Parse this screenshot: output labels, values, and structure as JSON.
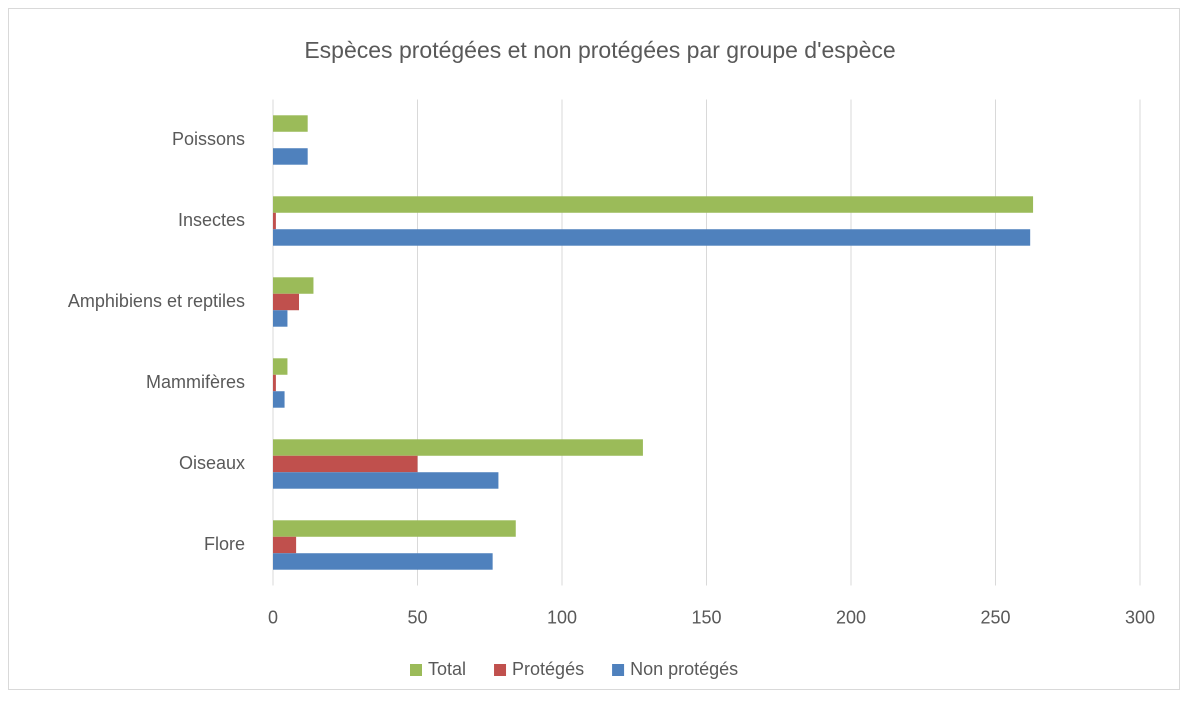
{
  "chart_data": {
    "type": "bar",
    "orientation": "horizontal",
    "title": "Espèces protégées et non protégées par groupe d'espèce",
    "categories": [
      "Flore",
      "Oiseaux",
      "Mammifères",
      "Amphibiens et reptiles",
      "Insectes",
      "Poissons"
    ],
    "series": [
      {
        "name": "Total",
        "color": "#9bbb59",
        "values": [
          84,
          128,
          5,
          14,
          263,
          12
        ]
      },
      {
        "name": "Protégés",
        "color": "#c0504d",
        "values": [
          8,
          50,
          1,
          9,
          1,
          0
        ]
      },
      {
        "name": "Non protégés",
        "color": "#4f81bd",
        "values": [
          76,
          78,
          4,
          5,
          262,
          12
        ]
      }
    ],
    "xlim": [
      0,
      300
    ],
    "xticks": [
      0,
      50,
      100,
      150,
      200,
      250,
      300
    ],
    "grid": true,
    "legend": "bottom"
  }
}
